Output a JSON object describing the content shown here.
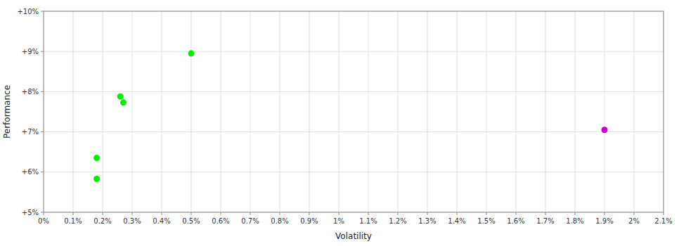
{
  "chart_data": {
    "type": "scatter",
    "xlabel": "Volatility",
    "ylabel": "Performance",
    "xlim": [
      0.0,
      0.021
    ],
    "ylim": [
      0.05,
      0.1
    ],
    "xticks": [
      {
        "value": 0.0,
        "label": "0%"
      },
      {
        "value": 0.001,
        "label": "0.1%"
      },
      {
        "value": 0.002,
        "label": "0.2%"
      },
      {
        "value": 0.003,
        "label": "0.3%"
      },
      {
        "value": 0.004,
        "label": "0.4%"
      },
      {
        "value": 0.005,
        "label": "0.5%"
      },
      {
        "value": 0.006,
        "label": "0.6%"
      },
      {
        "value": 0.007,
        "label": "0.7%"
      },
      {
        "value": 0.008,
        "label": "0.8%"
      },
      {
        "value": 0.009,
        "label": "0.9%"
      },
      {
        "value": 0.01,
        "label": "1%"
      },
      {
        "value": 0.011,
        "label": "1.1%"
      },
      {
        "value": 0.012,
        "label": "1.2%"
      },
      {
        "value": 0.013,
        "label": "1.3%"
      },
      {
        "value": 0.014,
        "label": "1.4%"
      },
      {
        "value": 0.015,
        "label": "1.5%"
      },
      {
        "value": 0.016,
        "label": "1.6%"
      },
      {
        "value": 0.017,
        "label": "1.7%"
      },
      {
        "value": 0.018,
        "label": "1.8%"
      },
      {
        "value": 0.019,
        "label": "1.9%"
      },
      {
        "value": 0.02,
        "label": "2%"
      },
      {
        "value": 0.021,
        "label": "2.1%"
      }
    ],
    "yticks": [
      {
        "value": 0.05,
        "label": "+5%"
      },
      {
        "value": 0.06,
        "label": "+6%"
      },
      {
        "value": 0.07,
        "label": "+7%"
      },
      {
        "value": 0.08,
        "label": "+8%"
      },
      {
        "value": 0.09,
        "label": "+9%"
      },
      {
        "value": 0.1,
        "label": "+10%"
      }
    ],
    "grid": true,
    "series": [
      {
        "color": "#00ee00",
        "x": [
          0.0018,
          0.0018,
          0.0026,
          0.0027,
          0.005
        ],
        "values": [
          0.0635,
          0.0583,
          0.0788,
          0.0773,
          0.0895
        ]
      },
      {
        "color": "#cc00cc",
        "x": [
          0.019
        ],
        "values": [
          0.0705
        ]
      }
    ]
  }
}
